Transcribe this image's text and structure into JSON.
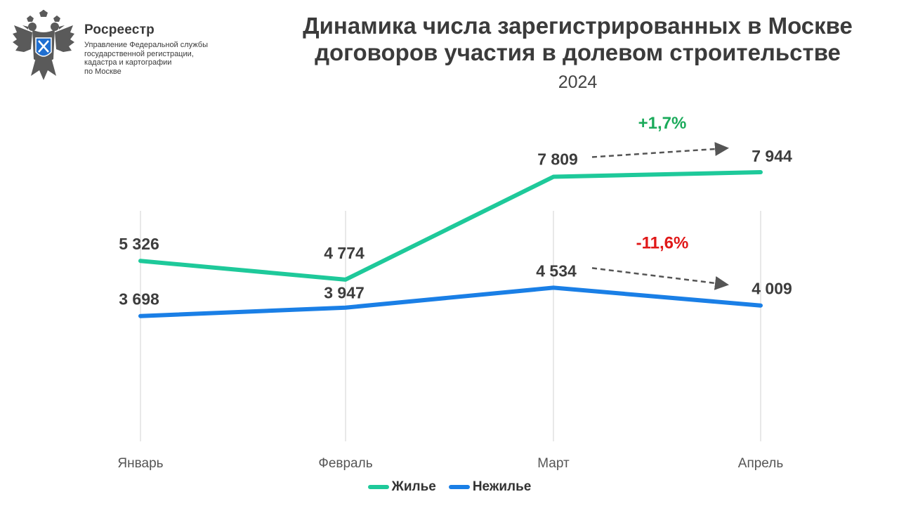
{
  "brand": {
    "name": "Росреестр",
    "description_lines": [
      "Управление Федеральной службы",
      "государственной регистрации,",
      "кадастра и картографии",
      "по Москве"
    ],
    "emblem_icon": "double-headed-eagle-icon",
    "colors": {
      "emblem": "#5a5a5a",
      "shield": "#1f6fd1"
    }
  },
  "header": {
    "title_lines": [
      "Динамика числа зарегистрированных в Москве",
      "договоров участия в долевом строительстве"
    ],
    "subtitle": "2024"
  },
  "chart_data": {
    "type": "line",
    "categories": [
      "Январь",
      "Февраль",
      "Март",
      "Апрель"
    ],
    "series": [
      {
        "name": "Жилье",
        "values": [
          5326,
          4774,
          7809,
          7944
        ],
        "labels": [
          "5 326",
          "4 774",
          "7 809",
          "7 944"
        ],
        "color": "#1ec99a"
      },
      {
        "name": "Нежилье",
        "values": [
          3698,
          3947,
          4534,
          4009
        ],
        "labels": [
          "3 698",
          "3 947",
          "4 534",
          "4 009"
        ],
        "color": "#1a7fe6"
      }
    ],
    "annotations": [
      {
        "text": "+1,7%",
        "series": 0,
        "from": "Март",
        "to": "Апрель",
        "color": "#1aaa5a"
      },
      {
        "text": "-11,6%",
        "series": 1,
        "from": "Март",
        "to": "Апрель",
        "color": "#e01818"
      }
    ],
    "title": "Динамика числа зарегистрированных в Москве договоров участия в долевом строительстве",
    "subtitle": "2024",
    "xlabel": "",
    "ylabel": "",
    "ylim": [
      0,
      9500
    ],
    "grid": "vertical",
    "legend": "bottom-center"
  },
  "legend": {
    "items": [
      {
        "label": "Жилье",
        "color": "#1ec99a"
      },
      {
        "label": "Нежилье",
        "color": "#1a7fe6"
      }
    ]
  }
}
